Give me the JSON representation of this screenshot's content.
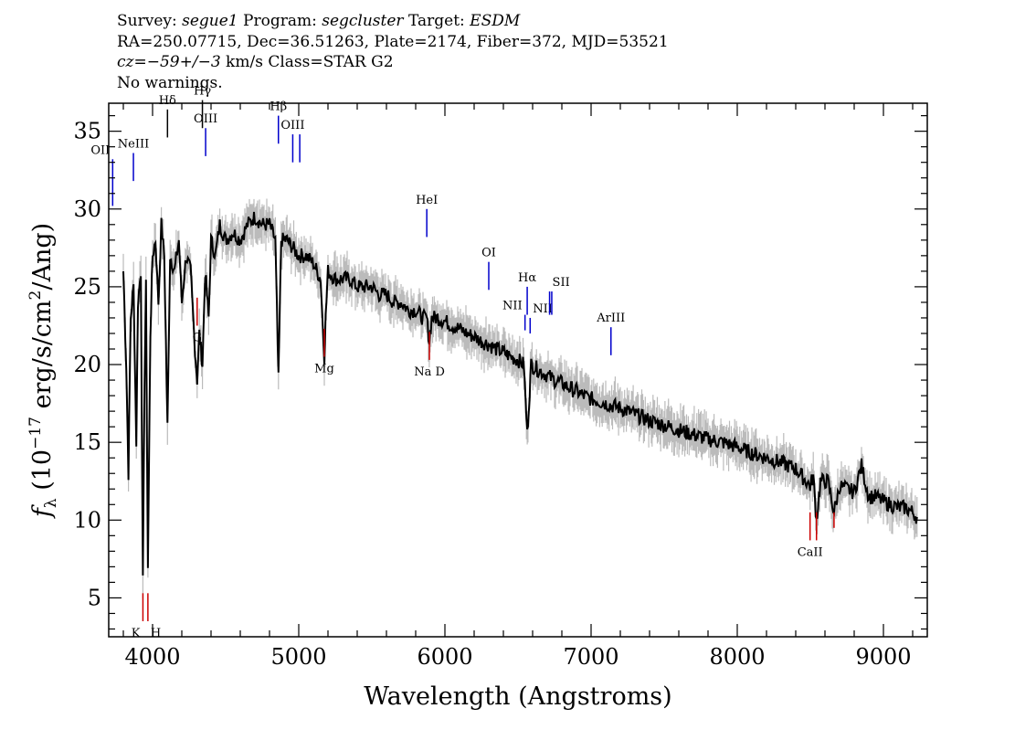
{
  "header": {
    "line1": {
      "survey_label": "Survey: ",
      "survey": "segue1",
      "program_label": " Program: ",
      "program": "segcluster",
      "target_label": " Target: ",
      "target": "ESDM"
    },
    "line2": "RA=250.07715, Dec=36.51263, Plate=2174, Fiber=372, MJD=53521",
    "line3": {
      "cz_label": "cz",
      "cz_value": "=−59+/−3",
      "rest": " km/s Class=STAR G2"
    },
    "line4": "No warnings."
  },
  "chart_data": {
    "type": "line",
    "xlabel": "Wavelength (Angstroms)",
    "ylabel_parts": [
      "f",
      "λ",
      " (10",
      "−17",
      " erg/s/cm",
      "2",
      "/Ang)"
    ],
    "xlim": [
      3700,
      9300
    ],
    "ylim": [
      2.5,
      36.8
    ],
    "xticks": [
      4000,
      5000,
      6000,
      7000,
      8000,
      9000
    ],
    "yticks": [
      5,
      10,
      15,
      20,
      25,
      30,
      35
    ],
    "series": [
      {
        "color": "#000000",
        "points": [
          [
            3800,
            26
          ],
          [
            3820,
            20
          ],
          [
            3835,
            13
          ],
          [
            3850,
            23
          ],
          [
            3870,
            25
          ],
          [
            3889,
            15
          ],
          [
            3900,
            24
          ],
          [
            3920,
            26
          ],
          [
            3934,
            6
          ],
          [
            3945,
            19
          ],
          [
            3955,
            25
          ],
          [
            3968,
            7
          ],
          [
            3985,
            22
          ],
          [
            4000,
            27
          ],
          [
            4020,
            28
          ],
          [
            4040,
            24
          ],
          [
            4060,
            29
          ],
          [
            4080,
            27
          ],
          [
            4102,
            16
          ],
          [
            4120,
            27
          ],
          [
            4150,
            26
          ],
          [
            4180,
            28
          ],
          [
            4200,
            24
          ],
          [
            4230,
            27
          ],
          [
            4260,
            26
          ],
          [
            4290,
            21
          ],
          [
            4305,
            19
          ],
          [
            4320,
            22
          ],
          [
            4341,
            20
          ],
          [
            4360,
            26
          ],
          [
            4384,
            23
          ],
          [
            4400,
            28
          ],
          [
            4430,
            27
          ],
          [
            4460,
            29
          ],
          [
            4500,
            28
          ],
          [
            4550,
            28.5
          ],
          [
            4600,
            28
          ],
          [
            4650,
            29
          ],
          [
            4700,
            29.5
          ],
          [
            4750,
            29
          ],
          [
            4800,
            29
          ],
          [
            4840,
            28
          ],
          [
            4861,
            19
          ],
          [
            4880,
            28
          ],
          [
            4920,
            28
          ],
          [
            4960,
            27.5
          ],
          [
            5000,
            27
          ],
          [
            5050,
            27
          ],
          [
            5100,
            26.5
          ],
          [
            5150,
            25.5
          ],
          [
            5167,
            22
          ],
          [
            5175,
            20.5
          ],
          [
            5184,
            23
          ],
          [
            5200,
            26
          ],
          [
            5250,
            25.5
          ],
          [
            5300,
            25.5
          ],
          [
            5350,
            25.5
          ],
          [
            5400,
            25
          ],
          [
            5450,
            25
          ],
          [
            5500,
            25
          ],
          [
            5550,
            24.5
          ],
          [
            5600,
            24.5
          ],
          [
            5650,
            24
          ],
          [
            5700,
            24
          ],
          [
            5750,
            23.5
          ],
          [
            5800,
            23.5
          ],
          [
            5850,
            23
          ],
          [
            5875,
            23
          ],
          [
            5893,
            21.5
          ],
          [
            5910,
            23
          ],
          [
            5950,
            23
          ],
          [
            6000,
            22.8
          ],
          [
            6050,
            22.5
          ],
          [
            6100,
            22.3
          ],
          [
            6150,
            22
          ],
          [
            6200,
            21.8
          ],
          [
            6250,
            21.5
          ],
          [
            6300,
            21.3
          ],
          [
            6350,
            21
          ],
          [
            6400,
            20.8
          ],
          [
            6450,
            20.5
          ],
          [
            6500,
            20.3
          ],
          [
            6540,
            20
          ],
          [
            6563,
            15.5
          ],
          [
            6590,
            20
          ],
          [
            6650,
            19.6
          ],
          [
            6700,
            19.3
          ],
          [
            6750,
            19
          ],
          [
            6800,
            18.8
          ],
          [
            6850,
            18.5
          ],
          [
            6900,
            18.3
          ],
          [
            6950,
            18
          ],
          [
            7000,
            17.8
          ],
          [
            7100,
            17.5
          ],
          [
            7200,
            17.2
          ],
          [
            7300,
            16.8
          ],
          [
            7400,
            16.4
          ],
          [
            7500,
            16.1
          ],
          [
            7600,
            15.8
          ],
          [
            7700,
            15.5
          ],
          [
            7800,
            15.2
          ],
          [
            7900,
            15
          ],
          [
            8000,
            14.7
          ],
          [
            8100,
            14.3
          ],
          [
            8200,
            14
          ],
          [
            8300,
            13.7
          ],
          [
            8400,
            13.3
          ],
          [
            8498,
            12.2
          ],
          [
            8520,
            12.8
          ],
          [
            8542,
            10
          ],
          [
            8570,
            12.5
          ],
          [
            8620,
            12.5
          ],
          [
            8662,
            10.5
          ],
          [
            8700,
            12.2
          ],
          [
            8750,
            12
          ],
          [
            8800,
            11.8
          ],
          [
            8850,
            13.5
          ],
          [
            8900,
            11.5
          ],
          [
            8950,
            11.5
          ],
          [
            9000,
            11.2
          ],
          [
            9050,
            11
          ],
          [
            9100,
            10.8
          ],
          [
            9150,
            10.8
          ],
          [
            9200,
            10.5
          ],
          [
            9230,
            10.2
          ]
        ]
      }
    ],
    "emission_lines": [
      {
        "label": "OII",
        "x": 3727,
        "y": 30.2,
        "length": 3.0,
        "color": "#0000cc",
        "label_pos": "above-left"
      },
      {
        "label": "NeIII",
        "x": 3869,
        "y": 31.8,
        "length": 1.8,
        "color": "#0000cc",
        "label_pos": "above"
      },
      {
        "label": "Hδ",
        "x": 4102,
        "y": 34.6,
        "length": 1.8,
        "color": "#000000",
        "label_pos": "above"
      },
      {
        "label": "Hγ",
        "x": 4341,
        "y": 35.2,
        "length": 1.8,
        "color": "#000000",
        "label_pos": "above"
      },
      {
        "label": "OIII",
        "x": 4363,
        "y": 33.4,
        "length": 1.8,
        "color": "#0000cc",
        "label_pos": "above"
      },
      {
        "label": "Hβ",
        "x": 4861,
        "y": 34.2,
        "length": 1.8,
        "color": "#0000cc",
        "label_pos": "above"
      },
      {
        "label": "OIII",
        "x": 4959,
        "y": 33.0,
        "length": 1.8,
        "color": "#0000cc",
        "label_pos": "above"
      },
      {
        "label": "OIII",
        "x": 5007,
        "y": 33.0,
        "length": 1.8,
        "color": "#0000cc",
        "label_pos": "none"
      },
      {
        "label": "HeI",
        "x": 5876,
        "y": 28.2,
        "length": 1.8,
        "color": "#0000cc",
        "label_pos": "above"
      },
      {
        "label": "OI",
        "x": 6300,
        "y": 24.8,
        "length": 1.8,
        "color": "#0000cc",
        "label_pos": "above"
      },
      {
        "label": "NII",
        "x": 6548,
        "y": 22.2,
        "length": 1.0,
        "color": "#0000cc",
        "label_pos": "above-left"
      },
      {
        "label": "Hα",
        "x": 6563,
        "y": 23.2,
        "length": 1.8,
        "color": "#0000cc",
        "label_pos": "above"
      },
      {
        "label": "NII",
        "x": 6583,
        "y": 22.0,
        "length": 1.0,
        "color": "#0000cc",
        "label_pos": "above-right"
      },
      {
        "label": "SII",
        "x": 6716,
        "y": 23.2,
        "length": 1.5,
        "color": "#0000cc",
        "label_pos": "above-right"
      },
      {
        "label": "",
        "x": 6731,
        "y": 23.2,
        "length": 1.5,
        "color": "#0000cc",
        "label_pos": "none"
      },
      {
        "label": "ArIII",
        "x": 7136,
        "y": 20.6,
        "length": 1.8,
        "color": "#0000cc",
        "label_pos": "above"
      }
    ],
    "absorption_lines": [
      {
        "label": "K",
        "x": 3934,
        "y": 3.5,
        "length": 1.8,
        "color": "#cc0000",
        "label_pos": "below-left"
      },
      {
        "label": "H",
        "x": 3968,
        "y": 3.5,
        "length": 1.8,
        "color": "#cc0000",
        "label_pos": "below-right"
      },
      {
        "label": "G",
        "x": 4305,
        "y": 22.5,
        "length": 1.8,
        "color": "#cc0000",
        "label_pos": "below"
      },
      {
        "label": "Mg",
        "x": 5175,
        "y": 20.5,
        "length": 1.8,
        "color": "#cc0000",
        "label_pos": "below"
      },
      {
        "label": "Na D",
        "x": 5894,
        "y": 20.3,
        "length": 1.8,
        "color": "#cc0000",
        "label_pos": "below"
      },
      {
        "label": "CaII",
        "x": 8498,
        "y": 8.7,
        "length": 1.8,
        "color": "#cc0000",
        "label_pos": "below"
      },
      {
        "label": "",
        "x": 8542,
        "y": 8.7,
        "length": 1.8,
        "color": "#cc0000",
        "label_pos": "none"
      },
      {
        "label": "",
        "x": 8662,
        "y": 9.5,
        "length": 1.0,
        "color": "#cc0000",
        "label_pos": "none"
      }
    ],
    "colors": {
      "flux": "#000000",
      "noise": "#bbbbbb",
      "emission": "#0000cc",
      "absorption": "#cc0000"
    }
  }
}
